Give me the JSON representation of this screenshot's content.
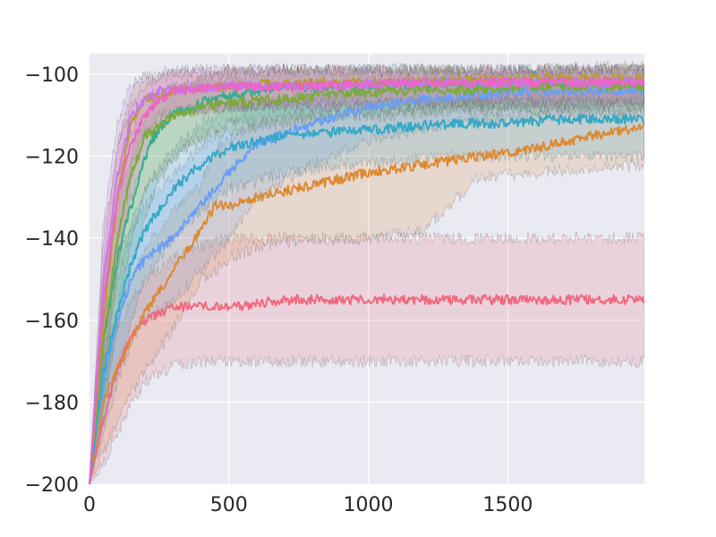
{
  "chart_data": {
    "type": "line",
    "title": "",
    "xlabel": "",
    "ylabel": "",
    "xlim": [
      0,
      1990
    ],
    "ylim": [
      -200,
      -95
    ],
    "grid": true,
    "legend": "none",
    "x_ticks": [
      0,
      500,
      1000,
      1500
    ],
    "y_ticks": [
      -200,
      -180,
      -160,
      -140,
      -120,
      -100
    ],
    "x_tick_labels": [
      "0",
      "500",
      "1000",
      "1500"
    ],
    "y_tick_labels": [
      "−200",
      "−180",
      "−160",
      "−140",
      "−120",
      "−100"
    ],
    "shaded_band": "mean ± spread per series",
    "series": [
      {
        "color": "#f0697e",
        "x": [
          0,
          50,
          100,
          150,
          200,
          300,
          400,
          500,
          700,
          1000,
          1300,
          1600,
          1990
        ],
        "y": [
          -200,
          -184,
          -172,
          -164,
          -160,
          -157,
          -156,
          -157,
          -155,
          -155,
          -155,
          -155,
          -155
        ],
        "lower": [
          -200,
          -195,
          -188,
          -180,
          -175,
          -171,
          -170,
          -170,
          -170,
          -170,
          -170,
          -170,
          -170
        ],
        "upper": [
          -200,
          -175,
          -162,
          -155,
          -150,
          -145,
          -142,
          -140,
          -140,
          -140,
          -140,
          -140,
          -140
        ]
      },
      {
        "color": "#dc8a33",
        "x": [
          0,
          50,
          100,
          150,
          200,
          300,
          400,
          450,
          500,
          600,
          800,
          1000,
          1200,
          1400,
          1600,
          1800,
          1990
        ],
        "y": [
          -200,
          -180,
          -172,
          -165,
          -158,
          -148,
          -138,
          -132,
          -132,
          -130,
          -127,
          -124,
          -122,
          -120,
          -118,
          -115,
          -113
        ],
        "lower": [
          -200,
          -192,
          -185,
          -178,
          -172,
          -162,
          -150,
          -148,
          -145,
          -142,
          -140,
          -140,
          -138,
          -125,
          -124,
          -123,
          -122
        ],
        "upper": [
          -200,
          -168,
          -158,
          -150,
          -143,
          -133,
          -127,
          -118,
          -116,
          -112,
          -110,
          -110,
          -108,
          -106,
          -105,
          -104,
          -103
        ]
      },
      {
        "color": "#6a9ef6",
        "x": [
          0,
          50,
          100,
          150,
          200,
          300,
          400,
          500,
          600,
          800,
          1000,
          1200,
          1400,
          1600,
          1990
        ],
        "y": [
          -200,
          -175,
          -160,
          -150,
          -145,
          -140,
          -132,
          -124,
          -117,
          -112,
          -108,
          -106,
          -105,
          -104,
          -104
        ],
        "lower": [
          -200,
          -188,
          -175,
          -165,
          -160,
          -155,
          -148,
          -140,
          -130,
          -122,
          -116,
          -113,
          -111,
          -110,
          -110
        ],
        "upper": [
          -200,
          -165,
          -150,
          -138,
          -132,
          -125,
          -118,
          -112,
          -108,
          -104,
          -102,
          -101,
          -100,
          -100,
          -100
        ]
      },
      {
        "color": "#34a9c7",
        "x": [
          0,
          50,
          100,
          150,
          200,
          300,
          400,
          500,
          700,
          900,
          1100,
          1300,
          1500,
          1700,
          1990
        ],
        "y": [
          -200,
          -172,
          -158,
          -146,
          -138,
          -128,
          -122,
          -118,
          -115,
          -114,
          -113,
          -112,
          -112,
          -111,
          -111
        ],
        "lower": [
          -200,
          -185,
          -172,
          -160,
          -150,
          -140,
          -133,
          -128,
          -124,
          -122,
          -121,
          -120,
          -120,
          -120,
          -120
        ],
        "upper": [
          -200,
          -160,
          -146,
          -136,
          -128,
          -118,
          -112,
          -108,
          -106,
          -105,
          -104,
          -103,
          -103,
          -102,
          -102
        ]
      },
      {
        "color": "#33ae8e",
        "x": [
          0,
          50,
          100,
          150,
          200,
          250,
          300,
          400,
          500,
          700,
          1000,
          1300,
          1600,
          1990
        ],
        "y": [
          -200,
          -165,
          -145,
          -132,
          -120,
          -113,
          -110,
          -107,
          -105,
          -103,
          -103,
          -102,
          -102,
          -102
        ],
        "lower": [
          -200,
          -182,
          -162,
          -148,
          -135,
          -126,
          -120,
          -115,
          -112,
          -110,
          -109,
          -108,
          -108,
          -108
        ],
        "upper": [
          -200,
          -150,
          -132,
          -120,
          -110,
          -105,
          -103,
          -101,
          -100,
          -99,
          -99,
          -99,
          -99,
          -99
        ]
      },
      {
        "color": "#7aab38",
        "x": [
          0,
          50,
          100,
          150,
          200,
          300,
          400,
          500,
          700,
          900,
          1100,
          1300,
          1600,
          1990
        ],
        "y": [
          -200,
          -165,
          -140,
          -125,
          -115,
          -110,
          -108,
          -107,
          -106,
          -105,
          -104,
          -104,
          -103,
          -103
        ],
        "lower": [
          -200,
          -180,
          -158,
          -140,
          -128,
          -120,
          -116,
          -114,
          -112,
          -110,
          -110,
          -109,
          -109,
          -109
        ],
        "upper": [
          -200,
          -150,
          -128,
          -114,
          -106,
          -103,
          -102,
          -101,
          -100,
          -100,
          -99,
          -99,
          -99,
          -99
        ]
      },
      {
        "color": "#b79c2e",
        "x": [
          0,
          50,
          100,
          150,
          200,
          300,
          500,
          800,
          1200,
          1600,
          1990
        ],
        "y": [
          -200,
          -160,
          -130,
          -112,
          -106,
          -104,
          -103,
          -102,
          -102,
          -101,
          -101
        ],
        "lower": [
          -200,
          -175,
          -148,
          -125,
          -115,
          -110,
          -108,
          -107,
          -107,
          -106,
          -106
        ],
        "upper": [
          -200,
          -145,
          -118,
          -104,
          -101,
          -100,
          -99,
          -99,
          -99,
          -99,
          -98
        ]
      },
      {
        "color": "#c678f0",
        "x": [
          0,
          50,
          100,
          150,
          200,
          250,
          300,
          500,
          800,
          1200,
          1600,
          1990
        ],
        "y": [
          -200,
          -150,
          -125,
          -110,
          -106,
          -104,
          -104,
          -103,
          -103,
          -102,
          -102,
          -102
        ],
        "lower": [
          -200,
          -168,
          -142,
          -122,
          -114,
          -110,
          -109,
          -108,
          -108,
          -107,
          -107,
          -107
        ],
        "upper": [
          -200,
          -136,
          -112,
          -102,
          -100,
          -100,
          -99,
          -99,
          -99,
          -99,
          -99,
          -99
        ]
      },
      {
        "color": "#f062c6",
        "x": [
          0,
          50,
          100,
          150,
          200,
          250,
          300,
          500,
          800,
          1200,
          1600,
          1990
        ],
        "y": [
          -200,
          -155,
          -130,
          -117,
          -110,
          -106,
          -104,
          -103,
          -103,
          -102,
          -102,
          -102
        ],
        "lower": [
          -200,
          -172,
          -146,
          -130,
          -120,
          -112,
          -109,
          -108,
          -108,
          -107,
          -107,
          -107
        ],
        "upper": [
          -200,
          -140,
          -118,
          -108,
          -103,
          -101,
          -100,
          -99,
          -99,
          -99,
          -99,
          -99
        ]
      }
    ]
  }
}
